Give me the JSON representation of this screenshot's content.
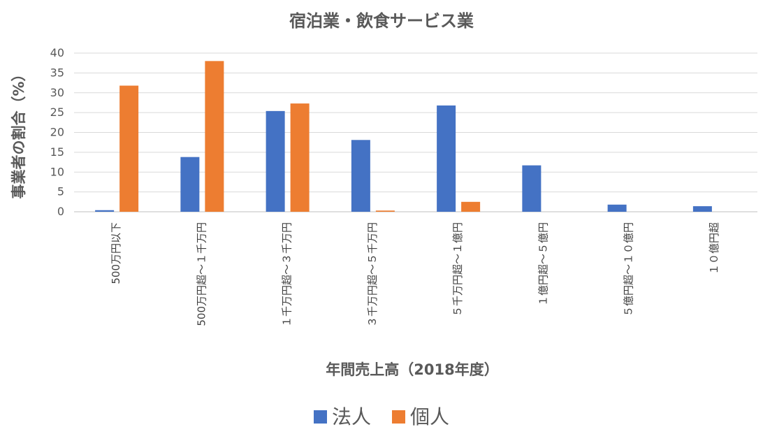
{
  "chart_data": {
    "type": "bar",
    "title": "宿泊業・飲食サービス業",
    "xlabel": "年間売上高（2018年度）",
    "ylabel": "事業者の割合（%）",
    "ylim": [
      0,
      40
    ],
    "yticks": [
      0,
      5,
      10,
      15,
      20,
      25,
      30,
      35,
      40
    ],
    "grid": true,
    "legend_position": "bottom",
    "categories": [
      "500万円以下",
      "500万円超～１千万円",
      "１千万円超～３千万円",
      "３千万円超～５千万円",
      "５千万円超～１億円",
      "１億円超～５億円",
      "５億円超～１０億円",
      "１０億円超"
    ],
    "series": [
      {
        "name": "法人",
        "color": "#4472c4",
        "values": [
          0.4,
          13.8,
          25.4,
          18.1,
          26.8,
          11.7,
          1.8,
          1.4
        ]
      },
      {
        "name": "個人",
        "color": "#ed7d31",
        "values": [
          31.8,
          38.0,
          27.3,
          0.3,
          2.5,
          0,
          0,
          0
        ]
      }
    ]
  }
}
